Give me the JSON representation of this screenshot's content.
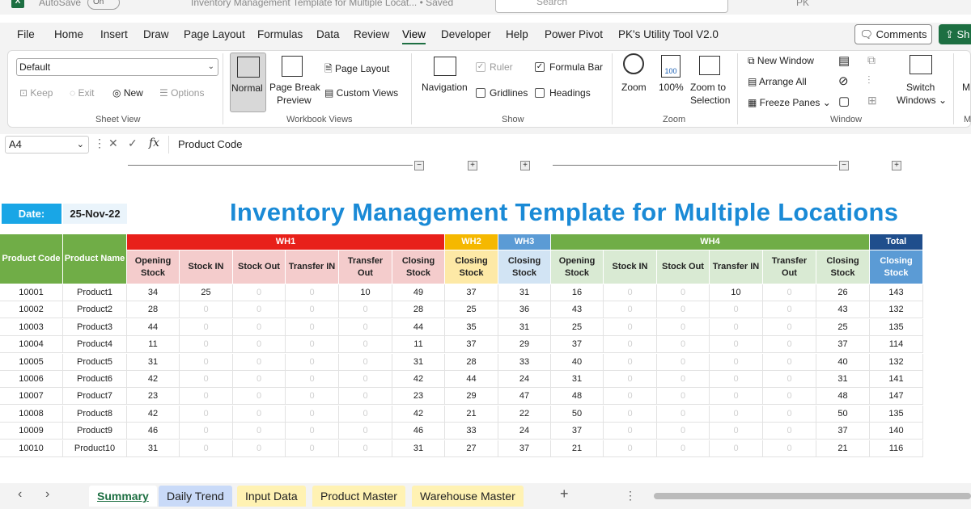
{
  "titlebar": {
    "autosave": "AutoSave",
    "toggle": "On",
    "filename": "Inventory Management Template for Multiple Locat... • Saved",
    "search_placeholder": "Search",
    "user": "PK"
  },
  "menu": {
    "items": [
      "File",
      "Home",
      "Insert",
      "Draw",
      "Page Layout",
      "Formulas",
      "Data",
      "Review",
      "View",
      "Developer",
      "Help",
      "Power Pivot",
      "PK's Utility Tool V2.0"
    ],
    "active": "View",
    "comments": "Comments",
    "share": "Sh"
  },
  "ribbon": {
    "sheet_view": {
      "dropdown": "Default",
      "keep": "Keep",
      "exit": "Exit",
      "new": "New",
      "options": "Options",
      "label": "Sheet View"
    },
    "workbook_views": {
      "normal": "Normal",
      "page_break": "Page Break",
      "preview": "Preview",
      "page_layout": "Page Layout",
      "custom_views": "Custom Views",
      "label": "Workbook Views"
    },
    "show": {
      "navigation": "Navigation",
      "ruler": "Ruler",
      "formula_bar": "Formula Bar",
      "gridlines": "Gridlines",
      "headings": "Headings",
      "label": "Show"
    },
    "zoom": {
      "zoom": "Zoom",
      "hundred": "100%",
      "zoom_to": "Zoom to",
      "selection": "Selection",
      "icon_text": "100",
      "label": "Zoom"
    },
    "window": {
      "new_window": "New Window",
      "arrange_all": "Arrange All",
      "freeze_panes": "Freeze Panes",
      "switch": "Switch",
      "windows": "Windows",
      "label": "Window",
      "macros_cut": "M"
    }
  },
  "formula_bar": {
    "name_box": "A4",
    "fx": "fx",
    "content": "Product Code"
  },
  "sheet": {
    "date_label": "Date:",
    "date_value": "25-Nov-22",
    "title": "Inventory Management Template for Multiple Locations",
    "groups": {
      "wh1": "WH1",
      "wh2": "WH2",
      "wh3": "WH3",
      "wh4": "WH4",
      "total": "Total"
    },
    "headers": {
      "product_code": "Product Code",
      "product_name": "Product Name",
      "wh1": [
        "Opening Stock",
        "Stock IN",
        "Stock Out",
        "Transfer IN",
        "Transfer Out",
        "Closing Stock"
      ],
      "wh2": [
        "Closing Stock"
      ],
      "wh3": [
        "Closing Stock"
      ],
      "wh4": [
        "Opening Stock",
        "Stock IN",
        "Stock Out",
        "Transfer IN",
        "Transfer Out",
        "Closing Stock"
      ],
      "total": [
        "Closing Stock"
      ]
    },
    "rows": [
      [
        "10001",
        "Product1",
        "34",
        "25",
        "0",
        "0",
        "10",
        "49",
        "37",
        "31",
        "16",
        "0",
        "0",
        "10",
        "0",
        "26",
        "143"
      ],
      [
        "10002",
        "Product2",
        "28",
        "0",
        "0",
        "0",
        "0",
        "28",
        "25",
        "36",
        "43",
        "0",
        "0",
        "0",
        "0",
        "43",
        "132"
      ],
      [
        "10003",
        "Product3",
        "44",
        "0",
        "0",
        "0",
        "0",
        "44",
        "35",
        "31",
        "25",
        "0",
        "0",
        "0",
        "0",
        "25",
        "135"
      ],
      [
        "10004",
        "Product4",
        "11",
        "0",
        "0",
        "0",
        "0",
        "11",
        "37",
        "29",
        "37",
        "0",
        "0",
        "0",
        "0",
        "37",
        "114"
      ],
      [
        "10005",
        "Product5",
        "31",
        "0",
        "0",
        "0",
        "0",
        "31",
        "28",
        "33",
        "40",
        "0",
        "0",
        "0",
        "0",
        "40",
        "132"
      ],
      [
        "10006",
        "Product6",
        "42",
        "0",
        "0",
        "0",
        "0",
        "42",
        "44",
        "24",
        "31",
        "0",
        "0",
        "0",
        "0",
        "31",
        "141"
      ],
      [
        "10007",
        "Product7",
        "23",
        "0",
        "0",
        "0",
        "0",
        "23",
        "29",
        "47",
        "48",
        "0",
        "0",
        "0",
        "0",
        "48",
        "147"
      ],
      [
        "10008",
        "Product8",
        "42",
        "0",
        "0",
        "0",
        "0",
        "42",
        "21",
        "22",
        "50",
        "0",
        "0",
        "0",
        "0",
        "50",
        "135"
      ],
      [
        "10009",
        "Product9",
        "46",
        "0",
        "0",
        "0",
        "0",
        "46",
        "33",
        "24",
        "37",
        "0",
        "0",
        "0",
        "0",
        "37",
        "140"
      ],
      [
        "10010",
        "Product10",
        "31",
        "0",
        "0",
        "0",
        "0",
        "31",
        "27",
        "37",
        "21",
        "0",
        "0",
        "0",
        "0",
        "21",
        "116"
      ]
    ]
  },
  "tabs": {
    "items": [
      "Summary",
      "Daily Trend",
      "Input Data",
      "Product Master",
      "Warehouse Master"
    ],
    "active": "Summary",
    "add": "+",
    "more": "⋮"
  },
  "colors": {
    "wh1": "#e8201a",
    "wh1_sub": "#f4cccc",
    "wh2": "#f5b800",
    "wh2_sub": "#fde9a6",
    "wh3": "#5b9bd5",
    "wh3_sub": "#d2e4f4",
    "wh4": "#70ad47",
    "wh4_sub": "#d9ead3",
    "total": "#1f4e8c",
    "total_sub": "#5b9bd5",
    "product_header": "#70ad47",
    "title": "#1a8ad6",
    "date_label": "#19a6e6"
  }
}
